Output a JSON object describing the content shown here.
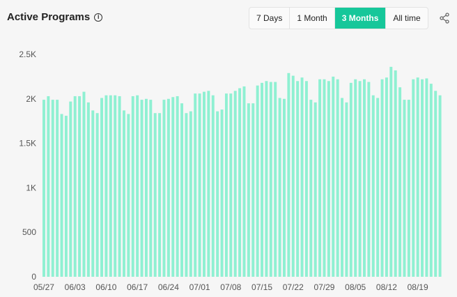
{
  "header": {
    "title": "Active Programs",
    "info_icon": "i"
  },
  "range_selector": {
    "options": [
      "7 Days",
      "1 Month",
      "3 Months",
      "All time"
    ],
    "active": "3 Months",
    "active_color": "#16c79a"
  },
  "share": {
    "icon": "share-icon"
  },
  "chart_data": {
    "type": "bar",
    "title": "Active Programs",
    "bar_color": "#8ff0d2",
    "ylim": [
      0,
      2500
    ],
    "yticks": [
      0,
      500,
      1000,
      1500,
      2000,
      2500
    ],
    "ytick_labels": [
      "0",
      "500",
      "1K",
      "1.5K",
      "2K",
      "2.5K"
    ],
    "x_tick_labels": [
      "05/27",
      "06/03",
      "06/10",
      "06/17",
      "06/24",
      "07/01",
      "07/08",
      "07/15",
      "07/22",
      "07/29",
      "08/05",
      "08/12",
      "08/19"
    ],
    "x_tick_every": 7,
    "grid": false,
    "values": [
      1990,
      2030,
      1990,
      1990,
      1830,
      1810,
      1970,
      2030,
      2030,
      2080,
      1960,
      1870,
      1840,
      2010,
      2040,
      2040,
      2040,
      2030,
      1870,
      1830,
      2030,
      2040,
      1990,
      2000,
      1990,
      1840,
      1840,
      1990,
      2000,
      2020,
      2030,
      1950,
      1840,
      1860,
      2060,
      2060,
      2080,
      2090,
      2040,
      1860,
      1880,
      2060,
      2060,
      2090,
      2120,
      2140,
      1950,
      1950,
      2150,
      2180,
      2200,
      2190,
      2190,
      2010,
      2000,
      2290,
      2260,
      2200,
      2240,
      2200,
      1990,
      1960,
      2220,
      2220,
      2200,
      2250,
      2220,
      2010,
      1960,
      2180,
      2220,
      2200,
      2220,
      2190,
      2040,
      2010,
      2220,
      2240,
      2360,
      2320,
      2130,
      1990,
      1990,
      2220,
      2240,
      2220,
      2230,
      2170,
      2090,
      2040
    ]
  }
}
